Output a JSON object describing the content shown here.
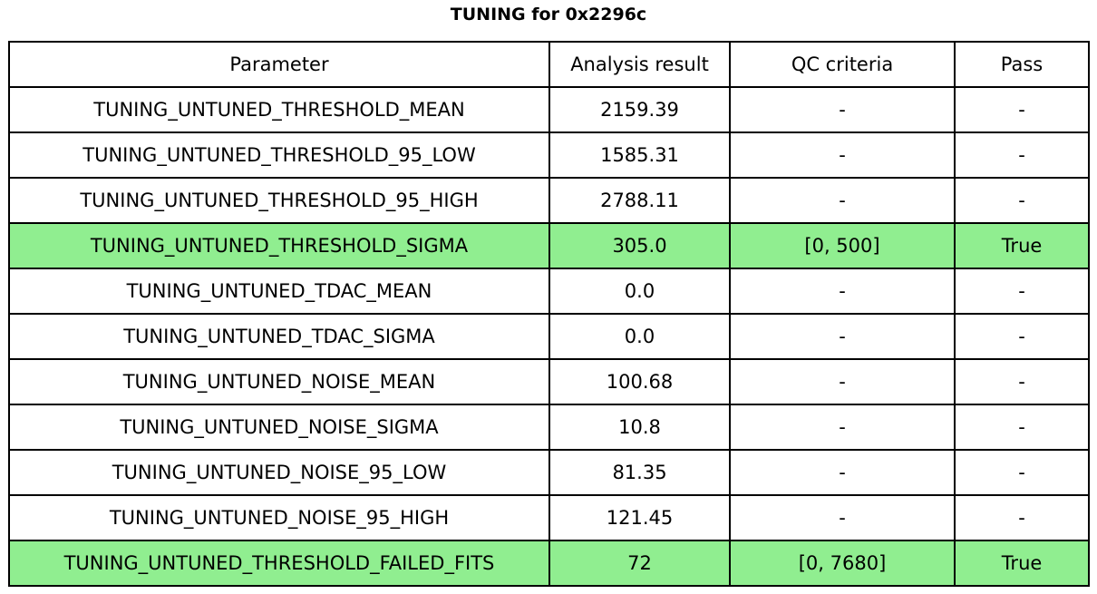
{
  "title": "TUNING for 0x2296c",
  "table": {
    "headers": [
      "Parameter",
      "Analysis result",
      "QC criteria",
      "Pass"
    ],
    "rows": [
      {
        "parameter": "TUNING_UNTUNED_THRESHOLD_MEAN",
        "result": "2159.39",
        "qc": "-",
        "pass": "-",
        "highlight": false
      },
      {
        "parameter": "TUNING_UNTUNED_THRESHOLD_95_LOW",
        "result": "1585.31",
        "qc": "-",
        "pass": "-",
        "highlight": false
      },
      {
        "parameter": "TUNING_UNTUNED_THRESHOLD_95_HIGH",
        "result": "2788.11",
        "qc": "-",
        "pass": "-",
        "highlight": false
      },
      {
        "parameter": "TUNING_UNTUNED_THRESHOLD_SIGMA",
        "result": "305.0",
        "qc": "[0, 500]",
        "pass": "True",
        "highlight": true
      },
      {
        "parameter": "TUNING_UNTUNED_TDAC_MEAN",
        "result": "0.0",
        "qc": "-",
        "pass": "-",
        "highlight": false
      },
      {
        "parameter": "TUNING_UNTUNED_TDAC_SIGMA",
        "result": "0.0",
        "qc": "-",
        "pass": "-",
        "highlight": false
      },
      {
        "parameter": "TUNING_UNTUNED_NOISE_MEAN",
        "result": "100.68",
        "qc": "-",
        "pass": "-",
        "highlight": false
      },
      {
        "parameter": "TUNING_UNTUNED_NOISE_SIGMA",
        "result": "10.8",
        "qc": "-",
        "pass": "-",
        "highlight": false
      },
      {
        "parameter": "TUNING_UNTUNED_NOISE_95_LOW",
        "result": "81.35",
        "qc": "-",
        "pass": "-",
        "highlight": false
      },
      {
        "parameter": "TUNING_UNTUNED_NOISE_95_HIGH",
        "result": "121.45",
        "qc": "-",
        "pass": "-",
        "highlight": false
      },
      {
        "parameter": "TUNING_UNTUNED_THRESHOLD_FAILED_FITS",
        "result": "72",
        "qc": "[0, 7680]",
        "pass": "True",
        "highlight": true
      }
    ]
  },
  "colors": {
    "highlight_row": "#90EE90",
    "border": "#000000",
    "background": "#FFFFFF",
    "text": "#000000"
  }
}
